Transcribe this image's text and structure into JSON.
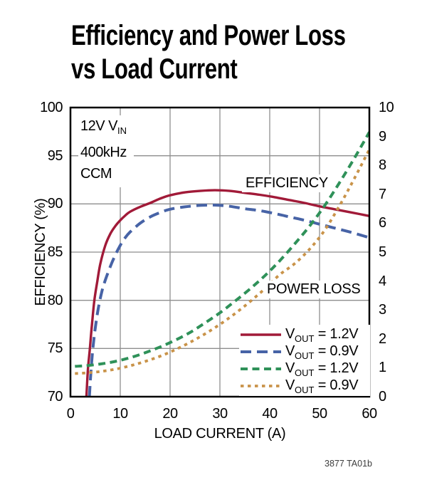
{
  "header": {
    "title_line1": "Efficiency and Power Loss",
    "title_line2": "vs Load Current"
  },
  "annotation": {
    "line1_main": "12V V",
    "line1_sub": "IN",
    "line2": "400kHz",
    "line3": "CCM"
  },
  "plot_labels": {
    "efficiency": "EFFICIENCY",
    "power_loss": "POWER LOSS"
  },
  "axes": {
    "x_title": "LOAD CURRENT (A)",
    "y_left_title": "EFFICIENCY (%)"
  },
  "caption": "3877 TA01b",
  "chart_data": {
    "type": "line",
    "title": "Efficiency and Power Loss vs Load Current",
    "xlabel": "LOAD CURRENT (A)",
    "ylabel_left": "EFFICIENCY (%)",
    "ylabel_right": "",
    "xlim": [
      0,
      60
    ],
    "x_ticks": [
      0,
      10,
      20,
      30,
      40,
      50,
      60
    ],
    "ylim_left": [
      70,
      100
    ],
    "y_ticks_left": [
      70,
      75,
      80,
      85,
      90,
      95,
      100
    ],
    "ylim_right": [
      0,
      10
    ],
    "y_ticks_right": [
      0,
      1,
      2,
      3,
      4,
      5,
      6,
      7,
      8,
      9,
      10
    ],
    "grid": true,
    "grid_color": "#8E8E8E",
    "frame_color": "#000000",
    "conditions": [
      "12V VIN",
      "400kHz",
      "CCM"
    ],
    "legend_position": "inside-bottom-right",
    "series": [
      {
        "name": "efficiency-vout-1.2v",
        "group": "efficiency",
        "axis": "left",
        "color": "#A11A38",
        "dash": [],
        "width": 3.4,
        "z": 2,
        "label_main": "V",
        "label_sub": "OUT",
        "label_rest": " = 1.2V",
        "points": [
          [
            3.2,
            70
          ],
          [
            3.5,
            72.8
          ],
          [
            3.9,
            75
          ],
          [
            4.3,
            77.4
          ],
          [
            4.8,
            80
          ],
          [
            5.4,
            82
          ],
          [
            6,
            83.8
          ],
          [
            7,
            85.7
          ],
          [
            8,
            86.9
          ],
          [
            9,
            87.7
          ],
          [
            10,
            88.3
          ],
          [
            11,
            88.8
          ],
          [
            12,
            89.2
          ],
          [
            14,
            89.7
          ],
          [
            16,
            90.1
          ],
          [
            18,
            90.55
          ],
          [
            20,
            90.9
          ],
          [
            23,
            91.2
          ],
          [
            26,
            91.35
          ],
          [
            29,
            91.42
          ],
          [
            32,
            91.35
          ],
          [
            35,
            91.15
          ],
          [
            38,
            90.95
          ],
          [
            41,
            90.7
          ],
          [
            44,
            90.4
          ],
          [
            47,
            90.1
          ],
          [
            50,
            89.75
          ],
          [
            53,
            89.45
          ],
          [
            56,
            89.15
          ],
          [
            60,
            88.75
          ]
        ]
      },
      {
        "name": "efficiency-vout-0.9v",
        "group": "efficiency",
        "axis": "left",
        "color": "#4763A6",
        "dash": [
          15,
          8
        ],
        "width": 4,
        "z": 1,
        "label_main": "V",
        "label_sub": "OUT",
        "label_rest": " = 0.9V",
        "points": [
          [
            3.8,
            70
          ],
          [
            4.1,
            72.5
          ],
          [
            4.5,
            75
          ],
          [
            5,
            77.2
          ],
          [
            5.6,
            79.2
          ],
          [
            6.3,
            80.9
          ],
          [
            7,
            82.1
          ],
          [
            8,
            83.5
          ],
          [
            9,
            84.7
          ],
          [
            10,
            85.7
          ],
          [
            11,
            86.5
          ],
          [
            12,
            87.1
          ],
          [
            14,
            88
          ],
          [
            16,
            88.65
          ],
          [
            18,
            89.1
          ],
          [
            20,
            89.45
          ],
          [
            23,
            89.7
          ],
          [
            26,
            89.85
          ],
          [
            29,
            89.88
          ],
          [
            32,
            89.75
          ],
          [
            35,
            89.5
          ],
          [
            38,
            89.3
          ],
          [
            41,
            89
          ],
          [
            44,
            88.65
          ],
          [
            47,
            88.3
          ],
          [
            50,
            87.9
          ],
          [
            53,
            87.5
          ],
          [
            56,
            87.1
          ],
          [
            60,
            86.5
          ]
        ]
      },
      {
        "name": "power-loss-vout-1.2v",
        "group": "power-loss",
        "axis": "right",
        "color": "#2F9159",
        "dash": [
          10,
          6.5
        ],
        "width": 4,
        "z": 4,
        "label_main": "V",
        "label_sub": "OUT",
        "label_rest": " = 1.2V",
        "points": [
          [
            0.9,
            1.05
          ],
          [
            3,
            1.07
          ],
          [
            6,
            1.13
          ],
          [
            9,
            1.22
          ],
          [
            12,
            1.35
          ],
          [
            15,
            1.52
          ],
          [
            18,
            1.72
          ],
          [
            21,
            1.95
          ],
          [
            24,
            2.22
          ],
          [
            27,
            2.55
          ],
          [
            30,
            2.9
          ],
          [
            33,
            3.3
          ],
          [
            36,
            3.72
          ],
          [
            39,
            4.18
          ],
          [
            42,
            4.7
          ],
          [
            45,
            5.28
          ],
          [
            48,
            5.9
          ],
          [
            51,
            6.6
          ],
          [
            54,
            7.4
          ],
          [
            57,
            8.25
          ],
          [
            60,
            9.15
          ]
        ]
      },
      {
        "name": "power-loss-vout-0.9v",
        "group": "power-loss",
        "axis": "right",
        "color": "#C99349",
        "dash": [
          4.5,
          5.5
        ],
        "width": 3.8,
        "z": 3,
        "label_main": "V",
        "label_sub": "OUT",
        "label_rest": " = 0.9V",
        "points": [
          [
            0.9,
            0.8
          ],
          [
            3,
            0.82
          ],
          [
            6,
            0.87
          ],
          [
            9,
            0.95
          ],
          [
            12,
            1.07
          ],
          [
            15,
            1.22
          ],
          [
            18,
            1.4
          ],
          [
            21,
            1.62
          ],
          [
            24,
            1.88
          ],
          [
            27,
            2.17
          ],
          [
            30,
            2.5
          ],
          [
            33,
            2.87
          ],
          [
            36,
            3.28
          ],
          [
            39,
            3.73
          ],
          [
            42,
            4.22
          ],
          [
            45,
            4.6
          ],
          [
            48,
            5.1
          ],
          [
            51,
            5.75
          ],
          [
            54,
            6.6
          ],
          [
            57,
            7.55
          ],
          [
            60,
            8.55
          ]
        ]
      }
    ]
  }
}
